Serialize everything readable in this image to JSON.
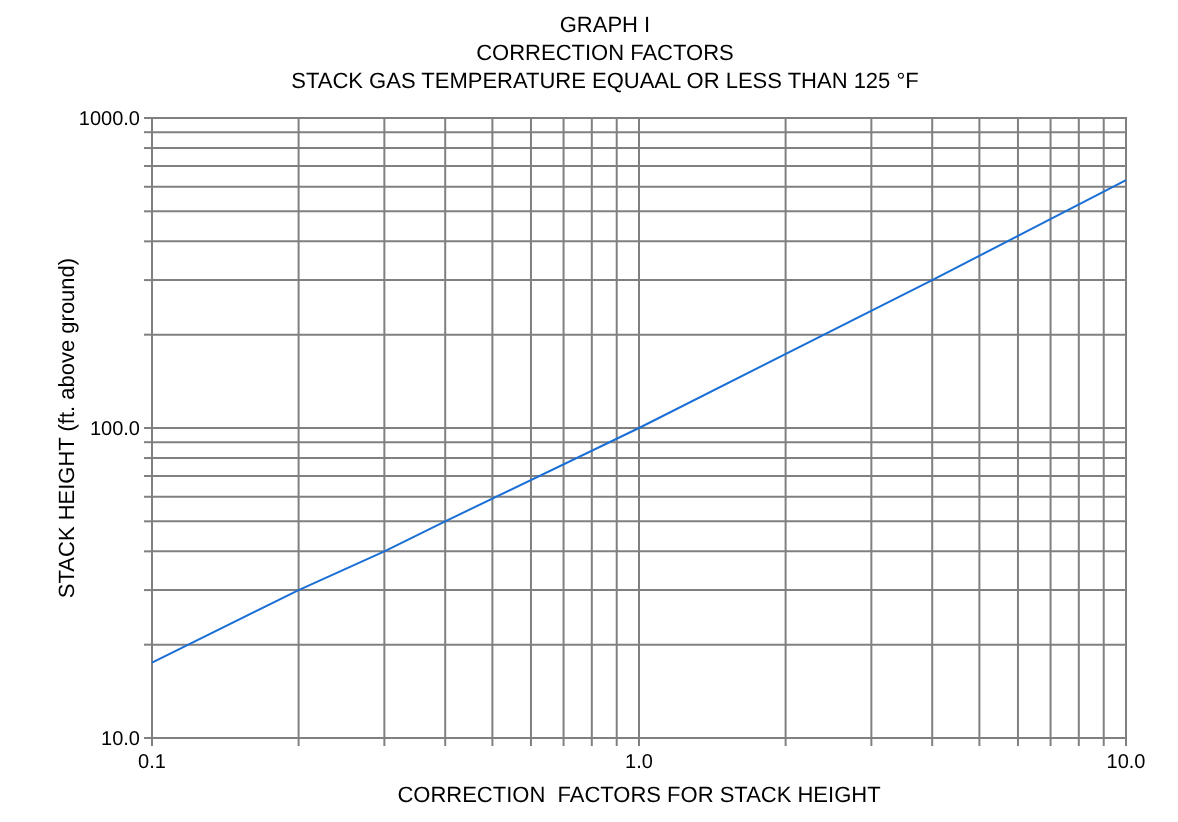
{
  "chart_data": {
    "type": "line",
    "title": "GRAPH I",
    "subtitle": "CORRECTION FACTORS\nSTACK GAS TEMPERATURE EQUAAL OR LESS THAN 125 °F",
    "xlabel": "CORRECTION  FACTORS FOR STACK HEIGHT",
    "ylabel": "STACK HEIGHT (ft. above ground)",
    "log": "xy",
    "grid": true,
    "marker": "none",
    "line_style": "solid",
    "xlim": [
      0.1,
      10
    ],
    "ylim": [
      10,
      1000
    ],
    "xticks": [
      {
        "value": 0.1,
        "label": "0.1"
      },
      {
        "value": 0.2,
        "label": null
      },
      {
        "value": 0.3,
        "label": null
      },
      {
        "value": 0.4,
        "label": null
      },
      {
        "value": 0.5,
        "label": null
      },
      {
        "value": 0.6,
        "label": null
      },
      {
        "value": 0.7,
        "label": null
      },
      {
        "value": 0.8,
        "label": null
      },
      {
        "value": 0.9,
        "label": null
      },
      {
        "value": 1,
        "label": "1.0"
      },
      {
        "value": 2,
        "label": null
      },
      {
        "value": 3,
        "label": null
      },
      {
        "value": 4,
        "label": null
      },
      {
        "value": 5,
        "label": null
      },
      {
        "value": 6,
        "label": null
      },
      {
        "value": 7,
        "label": null
      },
      {
        "value": 8,
        "label": null
      },
      {
        "value": 9,
        "label": null
      },
      {
        "value": 10,
        "label": "10.0"
      }
    ],
    "yticks": [
      {
        "value": 10,
        "label": "10.0"
      },
      {
        "value": 20,
        "label": null
      },
      {
        "value": 30,
        "label": null
      },
      {
        "value": 40,
        "label": null
      },
      {
        "value": 50,
        "label": null
      },
      {
        "value": 60,
        "label": null
      },
      {
        "value": 70,
        "label": null
      },
      {
        "value": 80,
        "label": null
      },
      {
        "value": 90,
        "label": null
      },
      {
        "value": 100,
        "label": "100.0"
      },
      {
        "value": 200,
        "label": null
      },
      {
        "value": 300,
        "label": null
      },
      {
        "value": 400,
        "label": null
      },
      {
        "value": 500,
        "label": null
      },
      {
        "value": 600,
        "label": null
      },
      {
        "value": 700,
        "label": null
      },
      {
        "value": 800,
        "label": null
      },
      {
        "value": 900,
        "label": null
      },
      {
        "value": 1000,
        "label": "1000.0"
      }
    ],
    "x": [
      0.1,
      0.2,
      0.3,
      0.4,
      1,
      4,
      10
    ],
    "series": [
      {
        "color": "#1a6fd6",
        "values": [
          17.5,
          30,
          40,
          50,
          100,
          300,
          630
        ]
      }
    ]
  }
}
